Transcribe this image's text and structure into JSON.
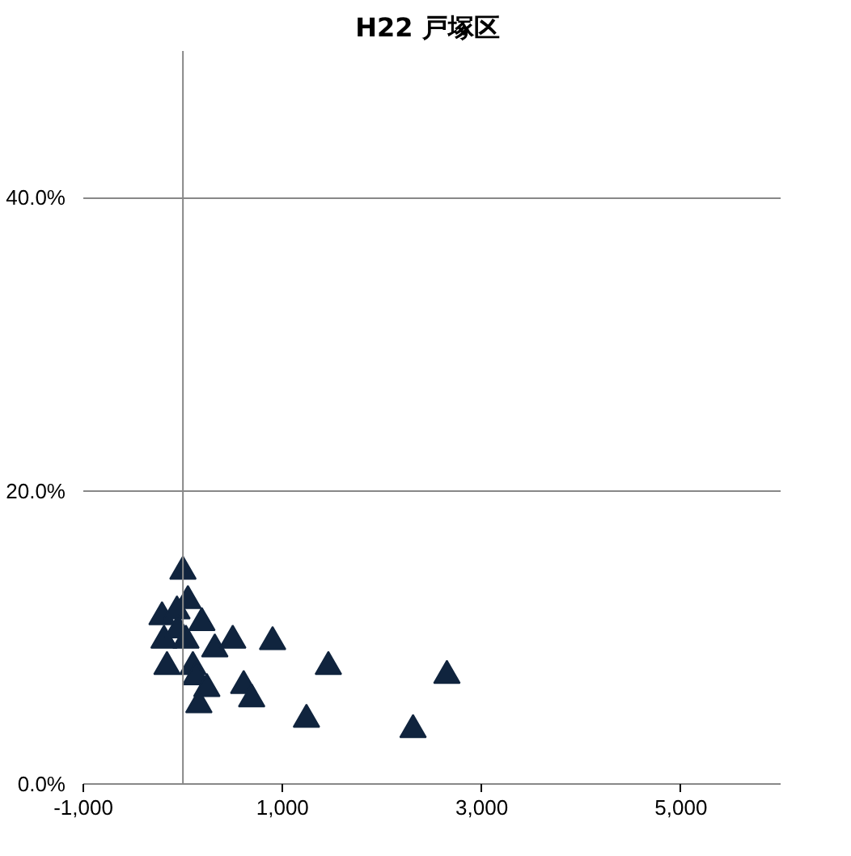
{
  "chart_data": {
    "type": "scatter",
    "title": "H22  戸塚区",
    "x": [
      0,
      50,
      -210,
      -60,
      190,
      -190,
      -50,
      30,
      320,
      500,
      900,
      -160,
      100,
      130,
      240,
      160,
      610,
      690,
      1460,
      1240,
      2650,
      2310
    ],
    "series": [
      {
        "color": "#10243e",
        "values": [
          14.5,
          12.5,
          11.4,
          11.8,
          11.0,
          9.8,
          10.5,
          9.8,
          9.2,
          9.8,
          9.7,
          8.0,
          8.0,
          7.3,
          6.5,
          5.4,
          6.7,
          5.8,
          8.0,
          4.4,
          7.4,
          3.7
        ]
      }
    ],
    "marker": "triangle",
    "grid": "y",
    "xlim": [
      -1000,
      6000
    ],
    "xticks": [
      {
        "value": -1000,
        "label": "-1,000"
      },
      {
        "value": 1000,
        "label": "1,000"
      },
      {
        "value": 3000,
        "label": "3,000"
      },
      {
        "value": 5000,
        "label": "5,000"
      }
    ],
    "ylim": [
      0,
      50
    ],
    "yticks": [
      {
        "value": 0,
        "label": "0.0%"
      },
      {
        "value": 20,
        "label": "20.0%"
      },
      {
        "value": 40,
        "label": "40.0%"
      }
    ]
  }
}
